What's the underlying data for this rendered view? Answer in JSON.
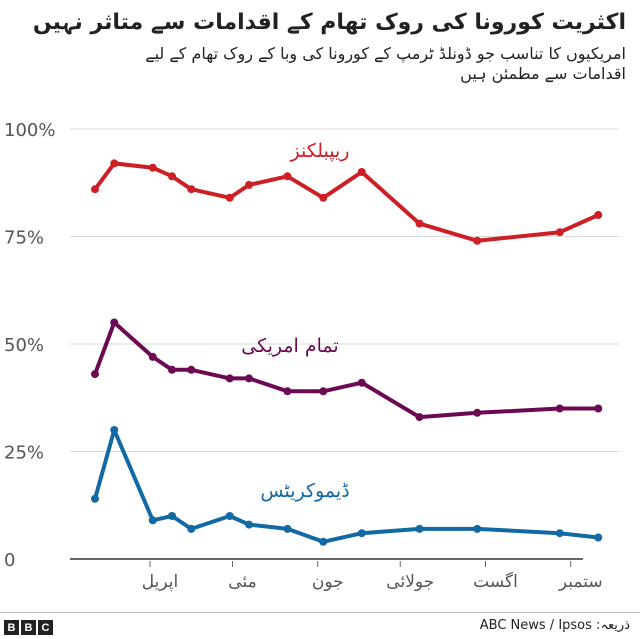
{
  "header": {
    "title": "اکثریت کورونا کی روک تھام کے اقدامات سے متاثر نہیں",
    "subtitle": "امریکیوں کا تناسب جو ڈونلڈ ٹرمپ کے کورونا کی وبا کے روک تھام کے لیے اقدامات سے مطمئن ہیں"
  },
  "footer": {
    "logo": "BBC",
    "source": "ذریعہ: ABC News / Ipsos"
  },
  "chart_data": {
    "type": "line",
    "title": "اکثریت کورونا کی روک تھام کے اقدامات سے متاثر نہیں",
    "ylim": [
      0,
      100
    ],
    "yticks": [
      {
        "value": 0,
        "label": "0"
      },
      {
        "value": 25,
        "label": "25%"
      },
      {
        "value": 50,
        "label": "50%"
      },
      {
        "value": 75,
        "label": "75%"
      },
      {
        "value": 100,
        "label": "100%"
      }
    ],
    "xticks": [
      {
        "date": "2020-04-01",
        "label": "اپریل"
      },
      {
        "date": "2020-05-01",
        "label": "مئی"
      },
      {
        "date": "2020-06-01",
        "label": "جون"
      },
      {
        "date": "2020-07-01",
        "label": "جولائی"
      },
      {
        "date": "2020-08-01",
        "label": "اگست"
      },
      {
        "date": "2020-09-01",
        "label": "ستمبر"
      }
    ],
    "xlim": [
      "2020-03-08",
      "2020-09-20"
    ],
    "grid": true,
    "x": [
      "2020-03-12",
      "2020-03-19",
      "2020-04-02",
      "2020-04-09",
      "2020-04-16",
      "2020-04-30",
      "2020-05-07",
      "2020-05-21",
      "2020-06-03",
      "2020-06-17",
      "2020-07-08",
      "2020-07-29",
      "2020-08-28",
      "2020-09-11"
    ],
    "series": [
      {
        "name": "ریپبلکنز",
        "color": "#cc1f26",
        "values": [
          86,
          92,
          91,
          89,
          86,
          84,
          87,
          89,
          84,
          90,
          78,
          74,
          76,
          80
        ]
      },
      {
        "name": "تمام امریکی",
        "color": "#6b0a52",
        "values": [
          43,
          55,
          47,
          44,
          44,
          42,
          42,
          39,
          39,
          41,
          33,
          34,
          35,
          35
        ]
      },
      {
        "name": "ڈیموکریٹس",
        "color": "#1269a3",
        "values": [
          14,
          30,
          9,
          10,
          7,
          10,
          8,
          7,
          4,
          6,
          7,
          7,
          6,
          5
        ]
      }
    ]
  }
}
